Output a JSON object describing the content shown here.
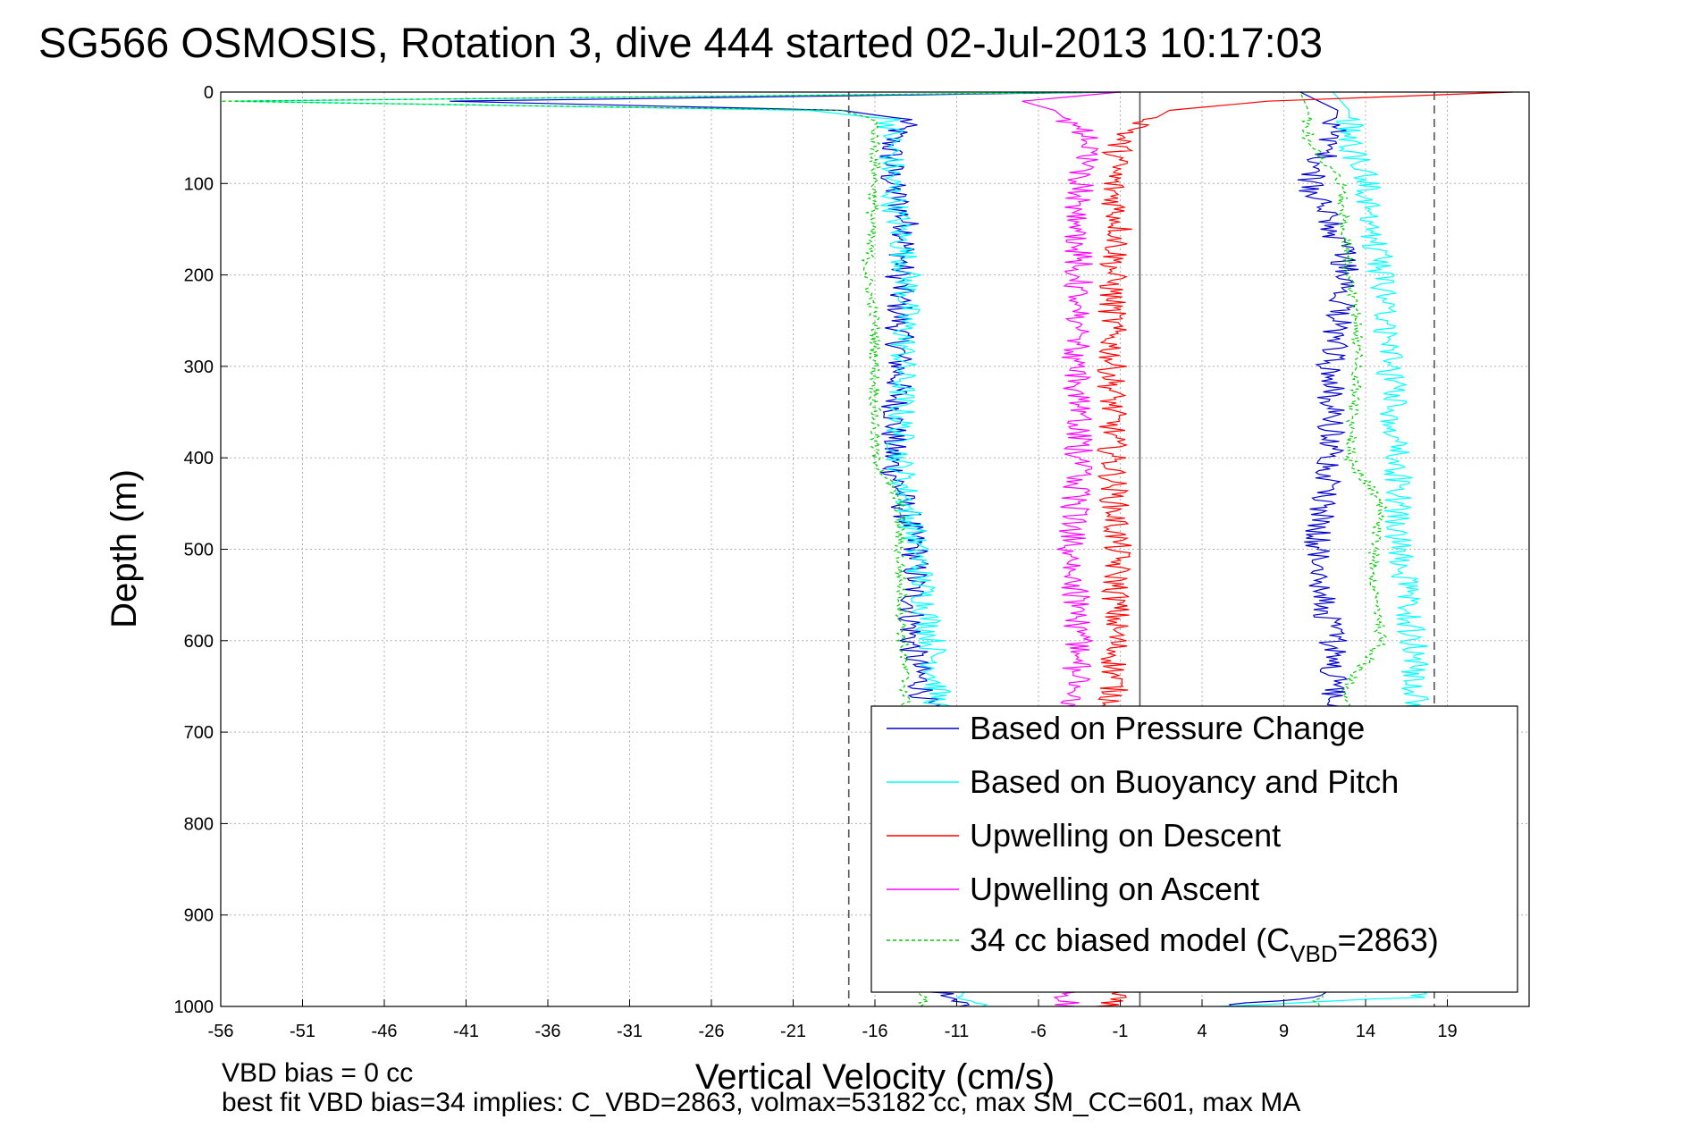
{
  "chart_data": {
    "type": "line",
    "title": "SG566 OSMOSIS, Rotation 3, dive 444 started 02-Jul-2013 10:17:03",
    "xlabel": "Vertical Velocity (cm/s)",
    "ylabel": "Depth (m)",
    "xlim": [
      -56,
      24
    ],
    "ylim": [
      1000,
      0
    ],
    "x_ticks": [
      -56,
      -51,
      -46,
      -41,
      -36,
      -31,
      -26,
      -21,
      -16,
      -11,
      -6,
      -1,
      4,
      9,
      14,
      19
    ],
    "y_ticks": [
      0,
      100,
      200,
      300,
      400,
      500,
      600,
      700,
      800,
      900,
      1000
    ],
    "grid": true,
    "legend_position": "bottom-right",
    "reference_lines": {
      "dashed": [
        -17.6,
        18.2
      ],
      "solid": [
        0.2
      ]
    },
    "series": [
      {
        "name": "Based on Pressure Change",
        "color": "#0000cc",
        "style": "solid",
        "descent": {
          "depth": [
            0,
            10,
            20,
            30,
            50,
            100,
            150,
            200,
            300,
            400,
            500,
            600,
            700,
            800,
            900,
            990,
            1000
          ],
          "velocity": [
            -1,
            -42,
            -18,
            -14,
            -15,
            -15,
            -14,
            -14.5,
            -14.5,
            -15,
            -13.5,
            -13.8,
            -12.5,
            -12.3,
            -12.1,
            -12,
            -10
          ]
        },
        "ascent": {
          "depth": [
            1000,
            990,
            900,
            800,
            700,
            600,
            500,
            400,
            300,
            200,
            150,
            100,
            50,
            20,
            0
          ],
          "velocity": [
            5,
            11.5,
            11.5,
            11.8,
            12,
            12,
            11,
            12,
            11.8,
            13,
            12,
            10.5,
            12,
            12.3,
            10
          ]
        }
      },
      {
        "name": "Based on Buoyancy and Pitch",
        "color": "#00ffff",
        "style": "solid",
        "descent": {
          "depth": [
            0,
            10,
            20,
            30,
            50,
            100,
            150,
            200,
            300,
            400,
            500,
            600,
            700,
            800,
            900,
            990,
            1000
          ],
          "velocity": [
            -1,
            -55,
            -20,
            -15,
            -15,
            -15,
            -14.5,
            -14,
            -14.3,
            -14.5,
            -13.5,
            -12.5,
            -12,
            -11.8,
            -11.5,
            -11,
            -9
          ]
        },
        "ascent": {
          "depth": [
            1000,
            990,
            900,
            800,
            700,
            600,
            500,
            400,
            300,
            200,
            100,
            50,
            20,
            0
          ],
          "velocity": [
            5,
            17,
            17,
            17,
            17,
            17,
            16,
            16,
            15.5,
            15,
            14,
            13,
            13,
            12
          ]
        }
      },
      {
        "name": "Upwelling on Descent",
        "color": "#ff0000",
        "style": "solid",
        "descent": {
          "depth": [
            0,
            10,
            20,
            50,
            100,
            150,
            200,
            300,
            400,
            500,
            600,
            700,
            800,
            900,
            990,
            1000
          ],
          "velocity": [
            23,
            8,
            2,
            -1,
            -1.5,
            -1,
            -1.5,
            -1.5,
            -1.5,
            -1.2,
            -1.3,
            -1.5,
            -1.6,
            -1.5,
            -1.5,
            -2
          ]
        }
      },
      {
        "name": "Upwelling on Ascent",
        "color": "#ff00ff",
        "style": "solid",
        "ascent": {
          "depth": [
            1000,
            990,
            900,
            800,
            700,
            600,
            500,
            400,
            300,
            200,
            100,
            50,
            20,
            10,
            0
          ],
          "velocity": [
            -4,
            -4.5,
            -4.5,
            -4.2,
            -4,
            -3.5,
            -4,
            -3.5,
            -3.8,
            -3.5,
            -3.5,
            -3,
            -5,
            -7,
            -1
          ]
        }
      },
      {
        "name": "34 cc biased model (C_VBD=2863)",
        "legend_label_main": "34 cc biased model (C",
        "legend_label_sub": "VBD",
        "legend_label_end": "=2863)",
        "color": "#00cc00",
        "style": "dashed",
        "descent": {
          "depth": [
            0,
            10,
            20,
            30,
            50,
            100,
            200,
            250,
            300,
            400,
            450,
            500,
            600,
            700,
            800,
            900,
            1000
          ],
          "velocity": [
            -1,
            -56,
            -18,
            -16,
            -16,
            -16,
            -16.5,
            -16,
            -16,
            -16,
            -14.5,
            -14.5,
            -14.3,
            -14,
            -13.8,
            -13.5,
            -13
          ]
        },
        "ascent": {
          "depth": [
            1000,
            900,
            800,
            700,
            650,
            600,
            550,
            500,
            450,
            400,
            300,
            250,
            200,
            100,
            50,
            20,
            0
          ],
          "velocity": [
            11,
            11.5,
            12,
            12.5,
            12.8,
            15,
            14.5,
            14.5,
            15,
            13,
            13.5,
            13.5,
            13,
            12.5,
            10.5,
            10.5,
            10
          ]
        }
      }
    ]
  },
  "footnotes": {
    "vbd_bias": "VBD bias = 0 cc",
    "best_fit": "best fit VBD bias=34 implies: C_VBD=2863, volmax=53182 cc, max SM_CC=601, max MA"
  }
}
